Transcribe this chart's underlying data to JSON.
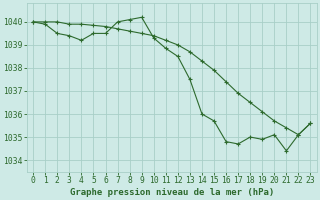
{
  "line1_x": [
    0,
    1,
    2,
    3,
    4,
    5,
    6,
    7,
    8,
    9,
    10,
    11,
    12,
    13,
    14,
    15,
    16,
    17,
    18,
    19,
    20,
    21,
    22,
    23
  ],
  "line1_y": [
    1040.0,
    1039.9,
    1039.5,
    1039.4,
    1039.2,
    1039.5,
    1039.5,
    1040.0,
    1040.1,
    1040.2,
    1039.3,
    1038.85,
    1038.5,
    1037.5,
    1036.0,
    1035.7,
    1034.8,
    1034.7,
    1035.0,
    1034.9,
    1035.1,
    1034.4,
    1035.1,
    1035.6
  ],
  "line2_x": [
    0,
    1,
    2,
    3,
    4,
    5,
    6,
    7,
    8,
    9,
    10,
    11,
    12,
    13,
    14,
    15,
    16,
    17,
    18,
    19,
    20,
    21,
    22,
    23
  ],
  "line2_y": [
    1040.0,
    1040.0,
    1040.0,
    1039.9,
    1039.9,
    1039.85,
    1039.8,
    1039.7,
    1039.6,
    1039.5,
    1039.4,
    1039.2,
    1039.0,
    1038.7,
    1038.3,
    1037.9,
    1037.4,
    1036.9,
    1036.5,
    1036.1,
    1035.7,
    1035.4,
    1035.1,
    1035.6
  ],
  "line_color": "#2d6a2d",
  "marker": "+",
  "bg_color": "#ceeae6",
  "grid_color": "#a8cfc8",
  "xlabel": "Graphe pression niveau de la mer (hPa)",
  "xtick_labels": [
    "0",
    "1",
    "2",
    "3",
    "4",
    "5",
    "6",
    "7",
    "8",
    "9",
    "10",
    "11",
    "12",
    "13",
    "14",
    "15",
    "16",
    "17",
    "18",
    "19",
    "20",
    "21",
    "22",
    "23"
  ],
  "ylim": [
    1033.5,
    1040.8
  ],
  "yticks": [
    1034,
    1035,
    1036,
    1037,
    1038,
    1039,
    1040
  ],
  "xlabel_fontsize": 6.5,
  "tick_fontsize": 5.8,
  "lw": 0.8,
  "ms": 3.0
}
